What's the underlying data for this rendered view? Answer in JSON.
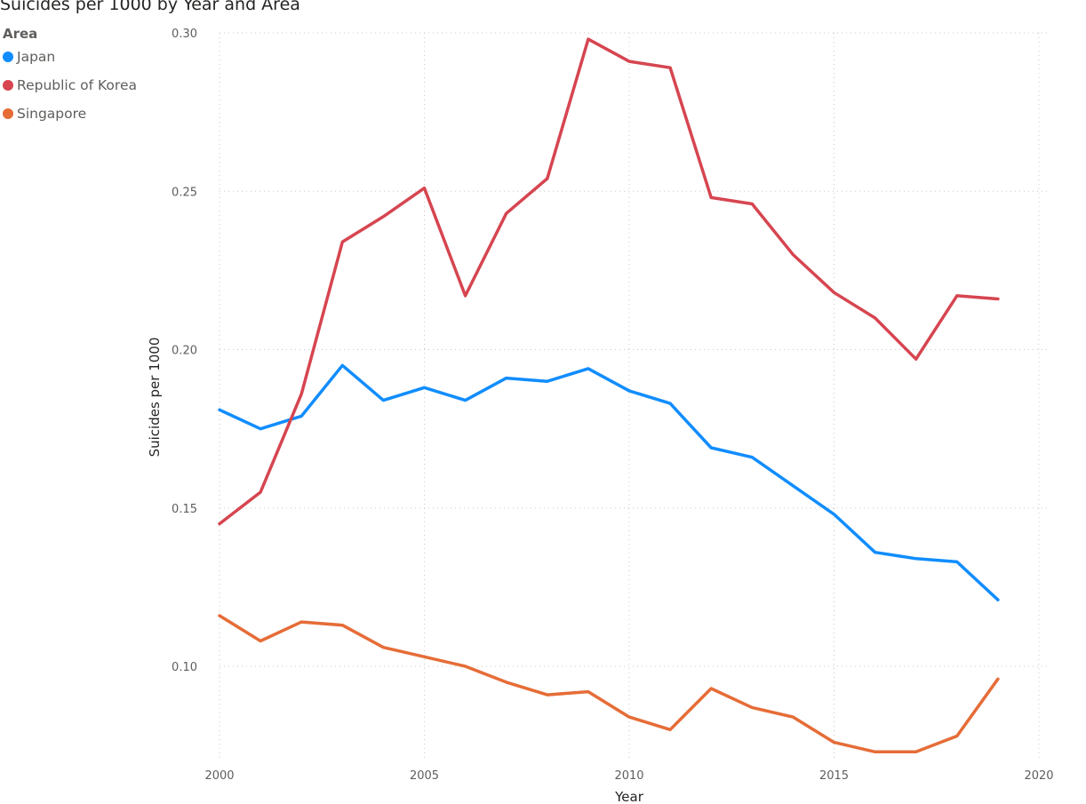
{
  "chart_data": {
    "type": "line",
    "title": "Suicides per 1000 by Year and Area",
    "xlabel": "Year",
    "ylabel": "Suicides per 1000",
    "xlim": [
      2000,
      2020
    ],
    "ylim": [
      0.07,
      0.3
    ],
    "x_ticks": [
      "2000",
      "2005",
      "2010",
      "2015",
      "2020"
    ],
    "y_ticks": [
      "0.10",
      "0.15",
      "0.20",
      "0.25",
      "0.30"
    ],
    "legend": {
      "title": "Area",
      "position": "top-left"
    },
    "grid": true,
    "x": [
      2000,
      2001,
      2002,
      2003,
      2004,
      2005,
      2006,
      2007,
      2008,
      2009,
      2010,
      2011,
      2012,
      2013,
      2014,
      2015,
      2016,
      2017,
      2018,
      2019
    ],
    "series": [
      {
        "name": "Japan",
        "color": "#118DFF",
        "values": [
          0.181,
          0.175,
          0.179,
          0.195,
          0.184,
          0.188,
          0.184,
          0.191,
          0.19,
          0.194,
          0.187,
          0.183,
          0.169,
          0.166,
          0.157,
          0.148,
          0.136,
          0.134,
          0.133,
          0.121
        ]
      },
      {
        "name": "Republic of Korea",
        "color": "#D64550",
        "values": [
          0.145,
          0.155,
          0.186,
          0.234,
          0.242,
          0.251,
          0.217,
          0.243,
          0.254,
          0.298,
          0.291,
          0.289,
          0.248,
          0.246,
          0.23,
          0.218,
          0.21,
          0.197,
          0.217,
          0.216
        ]
      },
      {
        "name": "Singapore",
        "color": "#E66C37",
        "values": [
          0.116,
          0.108,
          0.114,
          0.113,
          0.106,
          0.103,
          0.1,
          0.095,
          0.091,
          0.092,
          0.084,
          0.08,
          0.093,
          0.087,
          0.084,
          0.076,
          0.073,
          0.073,
          0.078,
          0.096
        ]
      }
    ]
  }
}
